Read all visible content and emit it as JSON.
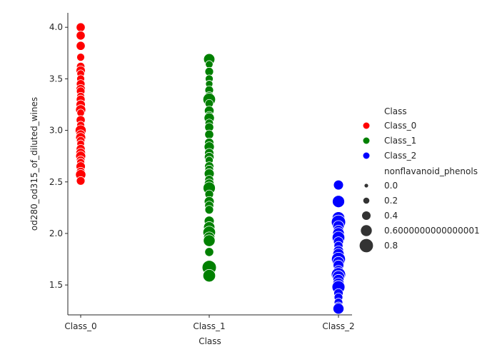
{
  "chart_data": {
    "type": "scatter",
    "xlabel": "Class",
    "ylabel": "od280_od315_of_diluted_wines",
    "categories": [
      "Class_0",
      "Class_1",
      "Class_2"
    ],
    "ylim": [
      1.21,
      4.14
    ],
    "yticks": [
      1.5,
      2.0,
      2.5,
      3.0,
      3.5,
      4.0
    ],
    "ytick_labels": [
      "1.5",
      "2.0",
      "2.5",
      "3.0",
      "3.5",
      "4.0"
    ],
    "grid": false,
    "legend_position": "right",
    "size_variable": "nonflavanoid_phenols",
    "series": [
      {
        "name": "Class_0",
        "color": "#ff0000",
        "points": [
          {
            "y": 4.0,
            "s": 0.28
          },
          {
            "y": 3.92,
            "s": 0.28
          },
          {
            "y": 3.82,
            "s": 0.28
          },
          {
            "y": 3.71,
            "s": 0.22
          },
          {
            "y": 3.62,
            "s": 0.24
          },
          {
            "y": 3.58,
            "s": 0.3
          },
          {
            "y": 3.55,
            "s": 0.2
          },
          {
            "y": 3.5,
            "s": 0.22
          },
          {
            "y": 3.45,
            "s": 0.26
          },
          {
            "y": 3.4,
            "s": 0.3
          },
          {
            "y": 3.38,
            "s": 0.25
          },
          {
            "y": 3.33,
            "s": 0.22
          },
          {
            "y": 3.3,
            "s": 0.27
          },
          {
            "y": 3.25,
            "s": 0.3
          },
          {
            "y": 3.2,
            "s": 0.35
          },
          {
            "y": 3.17,
            "s": 0.2
          },
          {
            "y": 3.1,
            "s": 0.28
          },
          {
            "y": 3.05,
            "s": 0.22
          },
          {
            "y": 3.0,
            "s": 0.4
          },
          {
            "y": 2.96,
            "s": 0.3
          },
          {
            "y": 2.93,
            "s": 0.34
          },
          {
            "y": 2.9,
            "s": 0.24
          },
          {
            "y": 2.87,
            "s": 0.2
          },
          {
            "y": 2.82,
            "s": 0.28
          },
          {
            "y": 2.78,
            "s": 0.32
          },
          {
            "y": 2.75,
            "s": 0.34
          },
          {
            "y": 2.71,
            "s": 0.26
          },
          {
            "y": 2.69,
            "s": 0.22
          },
          {
            "y": 2.65,
            "s": 0.3
          },
          {
            "y": 2.6,
            "s": 0.26
          },
          {
            "y": 2.57,
            "s": 0.36
          },
          {
            "y": 2.51,
            "s": 0.26
          }
        ]
      },
      {
        "name": "Class_1",
        "color": "#008000",
        "points": [
          {
            "y": 3.69,
            "s": 0.42
          },
          {
            "y": 3.64,
            "s": 0.2
          },
          {
            "y": 3.57,
            "s": 0.26
          },
          {
            "y": 3.5,
            "s": 0.22
          },
          {
            "y": 3.45,
            "s": 0.18
          },
          {
            "y": 3.39,
            "s": 0.26
          },
          {
            "y": 3.33,
            "s": 0.3
          },
          {
            "y": 3.3,
            "s": 0.5
          },
          {
            "y": 3.26,
            "s": 0.24
          },
          {
            "y": 3.19,
            "s": 0.32
          },
          {
            "y": 3.14,
            "s": 0.28
          },
          {
            "y": 3.12,
            "s": 0.36
          },
          {
            "y": 3.07,
            "s": 0.24
          },
          {
            "y": 3.03,
            "s": 0.28
          },
          {
            "y": 2.96,
            "s": 0.28
          },
          {
            "y": 2.88,
            "s": 0.3
          },
          {
            "y": 2.84,
            "s": 0.35
          },
          {
            "y": 2.78,
            "s": 0.3
          },
          {
            "y": 2.74,
            "s": 0.32
          },
          {
            "y": 2.71,
            "s": 0.22
          },
          {
            "y": 2.65,
            "s": 0.3
          },
          {
            "y": 2.62,
            "s": 0.26
          },
          {
            "y": 2.58,
            "s": 0.34
          },
          {
            "y": 2.52,
            "s": 0.28
          },
          {
            "y": 2.48,
            "s": 0.34
          },
          {
            "y": 2.44,
            "s": 0.48
          },
          {
            "y": 2.38,
            "s": 0.26
          },
          {
            "y": 2.31,
            "s": 0.34
          },
          {
            "y": 2.27,
            "s": 0.28
          },
          {
            "y": 2.23,
            "s": 0.26
          },
          {
            "y": 2.12,
            "s": 0.34
          },
          {
            "y": 2.06,
            "s": 0.42
          },
          {
            "y": 2.01,
            "s": 0.5
          },
          {
            "y": 1.96,
            "s": 0.42
          },
          {
            "y": 1.93,
            "s": 0.45
          },
          {
            "y": 1.82,
            "s": 0.28
          },
          {
            "y": 1.67,
            "s": 0.6
          },
          {
            "y": 1.59,
            "s": 0.5
          }
        ]
      },
      {
        "name": "Class_2",
        "color": "#0000ff",
        "points": [
          {
            "y": 2.47,
            "s": 0.34
          },
          {
            "y": 2.31,
            "s": 0.48
          },
          {
            "y": 2.15,
            "s": 0.5
          },
          {
            "y": 2.11,
            "s": 0.6
          },
          {
            "y": 2.07,
            "s": 0.42
          },
          {
            "y": 2.03,
            "s": 0.36
          },
          {
            "y": 2.0,
            "s": 0.44
          },
          {
            "y": 1.96,
            "s": 0.5
          },
          {
            "y": 1.92,
            "s": 0.34
          },
          {
            "y": 1.88,
            "s": 0.28
          },
          {
            "y": 1.83,
            "s": 0.36
          },
          {
            "y": 1.8,
            "s": 0.42
          },
          {
            "y": 1.75,
            "s": 0.58
          },
          {
            "y": 1.72,
            "s": 0.44
          },
          {
            "y": 1.69,
            "s": 0.38
          },
          {
            "y": 1.64,
            "s": 0.36
          },
          {
            "y": 1.6,
            "s": 0.6
          },
          {
            "y": 1.58,
            "s": 0.48
          },
          {
            "y": 1.55,
            "s": 0.4
          },
          {
            "y": 1.51,
            "s": 0.44
          },
          {
            "y": 1.48,
            "s": 0.52
          },
          {
            "y": 1.42,
            "s": 0.3
          },
          {
            "y": 1.38,
            "s": 0.26
          },
          {
            "y": 1.33,
            "s": 0.26
          },
          {
            "y": 1.29,
            "s": 0.3
          },
          {
            "y": 1.27,
            "s": 0.4
          }
        ]
      }
    ],
    "legend": {
      "hue_title": "Class",
      "hue_entries": [
        {
          "label": "Class_0",
          "color": "#ff0000"
        },
        {
          "label": "Class_1",
          "color": "#008000"
        },
        {
          "label": "Class_2",
          "color": "#0000ff"
        }
      ],
      "size_title": "nonflavanoid_phenols",
      "size_entries": [
        {
          "label": "0.0",
          "value": 0.0
        },
        {
          "label": "0.2",
          "value": 0.2
        },
        {
          "label": "0.4",
          "value": 0.4
        },
        {
          "label": "0.6000000000000001",
          "value": 0.6
        },
        {
          "label": "0.8",
          "value": 0.8
        }
      ]
    }
  }
}
